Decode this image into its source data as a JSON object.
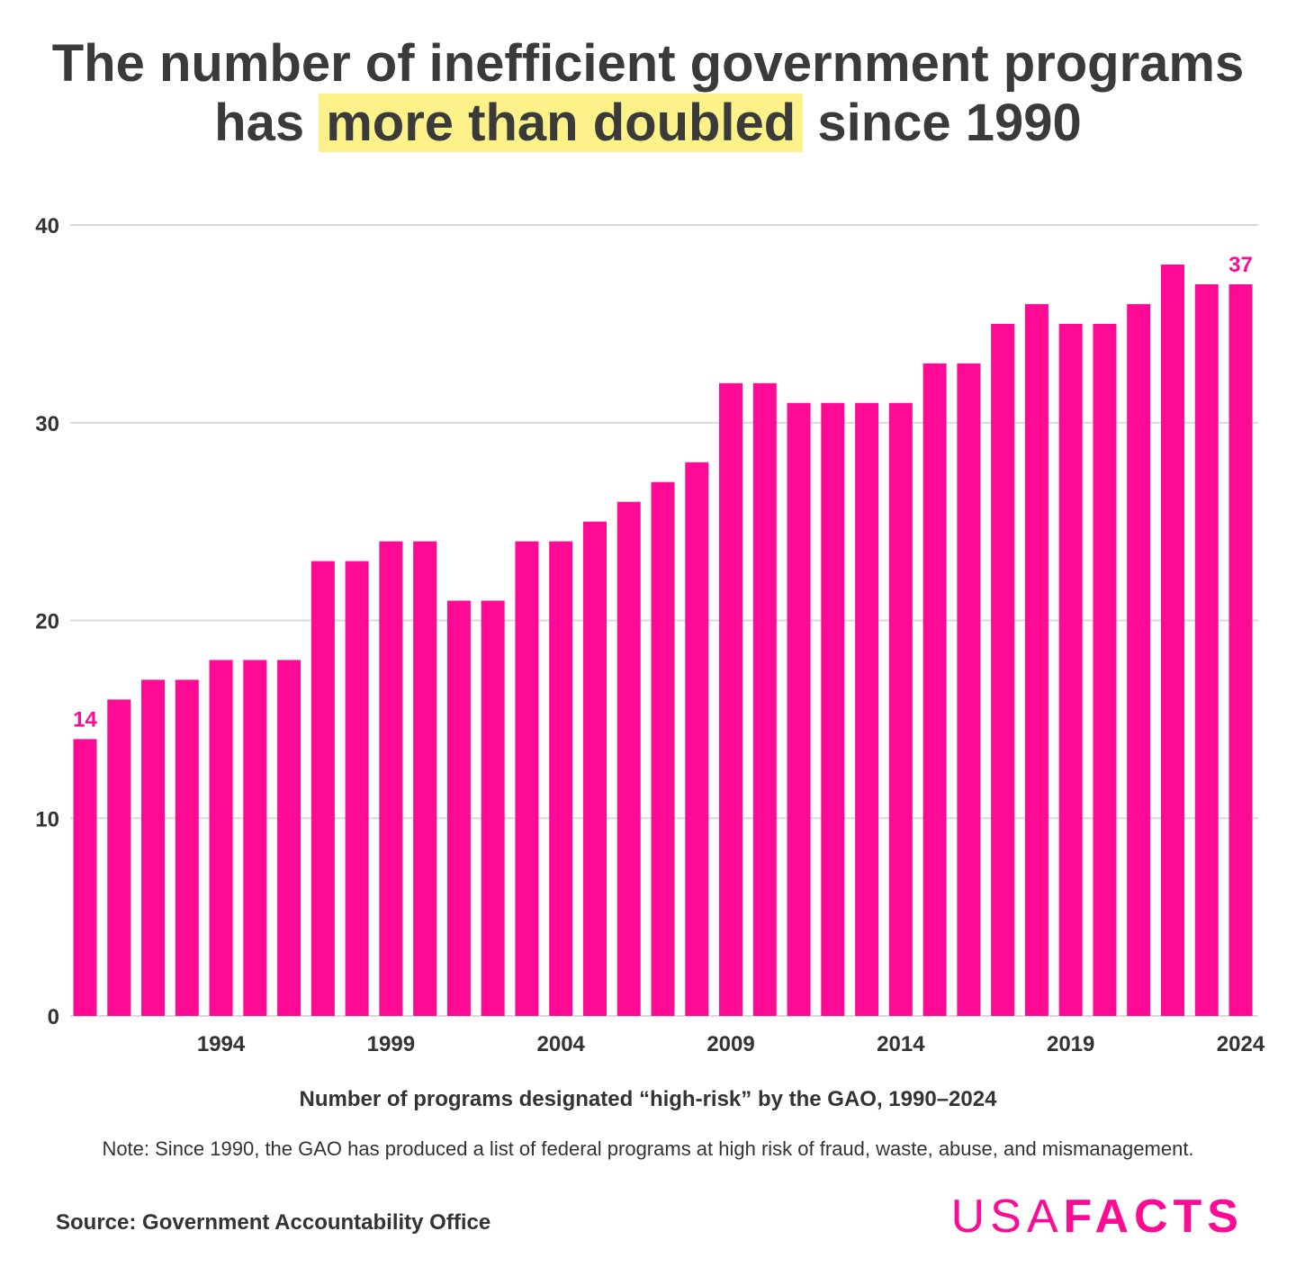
{
  "header": {
    "title_line1": "The number of inefficient government programs",
    "title_pre": "has ",
    "title_highlight": "more than doubled",
    "title_post": " since 1990"
  },
  "colors": {
    "bar": "#ff0a94",
    "highlight": "#fdf28a",
    "grid": "#d9d9d9",
    "text": "#333333"
  },
  "chart_data": {
    "type": "bar",
    "x": [
      1990,
      1991,
      1992,
      1993,
      1994,
      1995,
      1996,
      1997,
      1998,
      1999,
      2000,
      2001,
      2002,
      2003,
      2004,
      2005,
      2006,
      2007,
      2008,
      2009,
      2010,
      2011,
      2012,
      2013,
      2014,
      2015,
      2016,
      2017,
      2018,
      2019,
      2020,
      2021,
      2022,
      2023,
      2024
    ],
    "values": [
      14,
      16,
      17,
      17,
      18,
      18,
      18,
      23,
      23,
      24,
      24,
      21,
      21,
      24,
      24,
      25,
      26,
      27,
      28,
      32,
      32,
      31,
      31,
      31,
      31,
      33,
      33,
      35,
      36,
      35,
      35,
      36,
      38,
      37,
      37
    ],
    "x_tick_labels": [
      "1994",
      "1999",
      "2004",
      "2009",
      "2014",
      "2019",
      "2024"
    ],
    "y_tick_labels": [
      "0",
      "10",
      "20",
      "30",
      "40"
    ],
    "ylim": [
      0,
      40
    ],
    "grid": true,
    "data_labels": [
      {
        "year": 1990,
        "text": "14"
      },
      {
        "year": 2024,
        "text": "37"
      }
    ],
    "xlabel": "Number of programs designated “high-risk” by the GAO, 1990–2024"
  },
  "footer": {
    "note": "Note: Since 1990, the GAO has produced a list of federal programs at high risk of fraud, waste, abuse, and mismanagement.",
    "source": "Source: Government Accountability Office",
    "logo_light": "USA",
    "logo_bold": "FACTS"
  }
}
